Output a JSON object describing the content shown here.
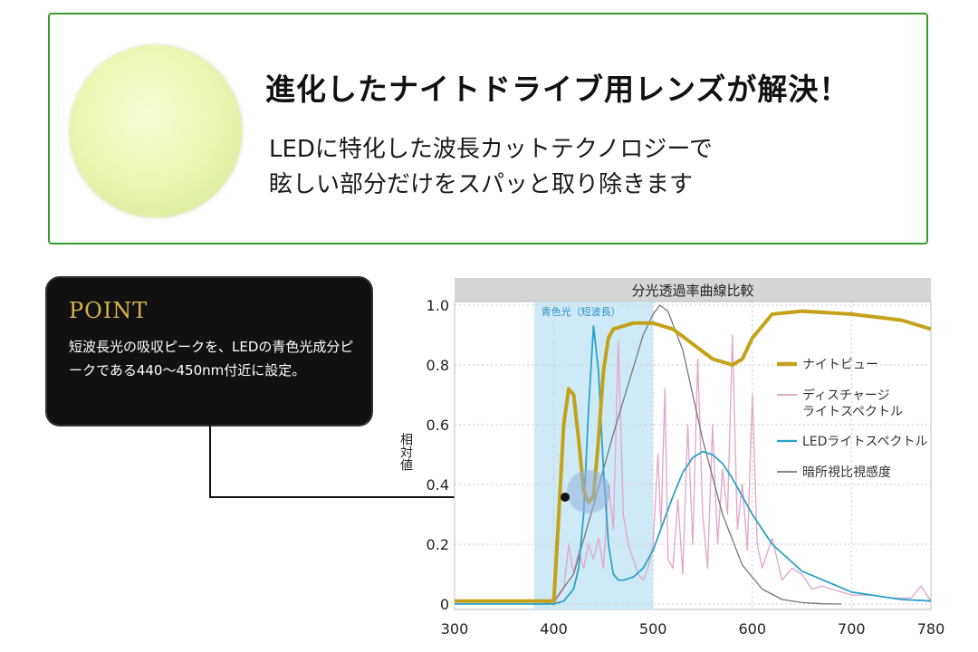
{
  "header": {
    "headline": "進化したナイトドライブ用レンズが解決！",
    "subtext_line1": "LEDに特化した波長カットテクノロジーで",
    "subtext_line2": "眩しい部分だけをスパッと取り除きます"
  },
  "point": {
    "title": "POINT",
    "body": "短波長光の吸収ピークを、LEDの青色光成分ピークである440〜450nm付近に設定。"
  },
  "chart_data": {
    "type": "line",
    "title": "分光透過率曲線比較",
    "ylabel": "相対値",
    "xlabel": "",
    "xlim": [
      300,
      780
    ],
    "ylim": [
      0,
      1.0
    ],
    "x_ticks": [
      "300",
      "400",
      "500",
      "600",
      "700",
      "780"
    ],
    "y_ticks": [
      "0",
      "0.2",
      "0.4",
      "0.6",
      "0.8",
      "1.0"
    ],
    "region": {
      "label": "青色光（短波長）",
      "x": [
        380,
        500
      ]
    },
    "grid": true,
    "legend_position": "right",
    "colors": {
      "nightview": "#c3a21a",
      "discharge": "#e3a9cc",
      "led": "#2aa2c8",
      "scotopic": "#777777",
      "region": "#cfeaf7",
      "header": "#d6d6d6"
    },
    "series": [
      {
        "name": "ナイトビュー",
        "color": "#c3a21a",
        "x": [
          300,
          390,
          400,
          405,
          410,
          415,
          420,
          425,
          430,
          435,
          440,
          445,
          450,
          455,
          460,
          470,
          480,
          500,
          520,
          540,
          560,
          570,
          580,
          590,
          600,
          620,
          650,
          700,
          750,
          780
        ],
        "y": [
          0.01,
          0.01,
          0.01,
          0.3,
          0.6,
          0.72,
          0.7,
          0.55,
          0.38,
          0.34,
          0.36,
          0.55,
          0.78,
          0.89,
          0.92,
          0.93,
          0.94,
          0.94,
          0.92,
          0.87,
          0.82,
          0.81,
          0.8,
          0.82,
          0.89,
          0.97,
          0.98,
          0.97,
          0.95,
          0.92
        ]
      },
      {
        "name": "ディスチャージライトスペクトル",
        "color": "#e3a9cc",
        "x": [
          300,
          400,
          410,
          415,
          420,
          425,
          430,
          435,
          440,
          445,
          450,
          455,
          460,
          465,
          470,
          475,
          480,
          485,
          490,
          495,
          500,
          505,
          508,
          512,
          515,
          520,
          525,
          530,
          535,
          540,
          545,
          550,
          555,
          560,
          565,
          570,
          575,
          580,
          585,
          590,
          595,
          600,
          605,
          610,
          620,
          630,
          640,
          650,
          660,
          670,
          680,
          690,
          700,
          720,
          740,
          760,
          770,
          780
        ],
        "y": [
          0,
          0,
          0.05,
          0.2,
          0.1,
          0.18,
          0.12,
          0.2,
          0.15,
          0.22,
          0.12,
          0.4,
          0.25,
          0.88,
          0.3,
          0.2,
          0.15,
          0.1,
          0.08,
          0.12,
          0.2,
          0.5,
          0.25,
          0.72,
          0.15,
          0.12,
          0.35,
          0.1,
          0.6,
          0.2,
          0.82,
          0.3,
          0.12,
          0.6,
          0.2,
          0.45,
          0.3,
          0.9,
          0.25,
          0.4,
          0.18,
          0.7,
          0.2,
          0.12,
          0.22,
          0.08,
          0.12,
          0.1,
          0.05,
          0.06,
          0.05,
          0.04,
          0.03,
          0.03,
          0.02,
          0.02,
          0.06,
          0.01
        ]
      },
      {
        "name": "LEDライトスペクトル",
        "color": "#2aa2c8",
        "x": [
          300,
          400,
          410,
          420,
          425,
          430,
          435,
          440,
          445,
          450,
          455,
          460,
          465,
          470,
          480,
          490,
          500,
          510,
          520,
          530,
          540,
          550,
          560,
          570,
          580,
          590,
          600,
          620,
          650,
          700,
          750,
          780
        ],
        "y": [
          0,
          0,
          0.01,
          0.05,
          0.12,
          0.3,
          0.65,
          0.93,
          0.78,
          0.45,
          0.2,
          0.1,
          0.08,
          0.08,
          0.09,
          0.12,
          0.18,
          0.27,
          0.36,
          0.44,
          0.49,
          0.51,
          0.5,
          0.47,
          0.42,
          0.36,
          0.3,
          0.2,
          0.11,
          0.04,
          0.015,
          0.01
        ]
      },
      {
        "name": "暗所視比視感度",
        "color": "#777777",
        "x": [
          390,
          400,
          420,
          440,
          460,
          480,
          490,
          500,
          507,
          515,
          530,
          550,
          570,
          590,
          610,
          630,
          650,
          670,
          690
        ],
        "y": [
          0,
          0.01,
          0.1,
          0.33,
          0.57,
          0.79,
          0.9,
          0.97,
          1.0,
          0.98,
          0.85,
          0.55,
          0.3,
          0.13,
          0.05,
          0.015,
          0.005,
          0.001,
          0
        ]
      }
    ]
  }
}
